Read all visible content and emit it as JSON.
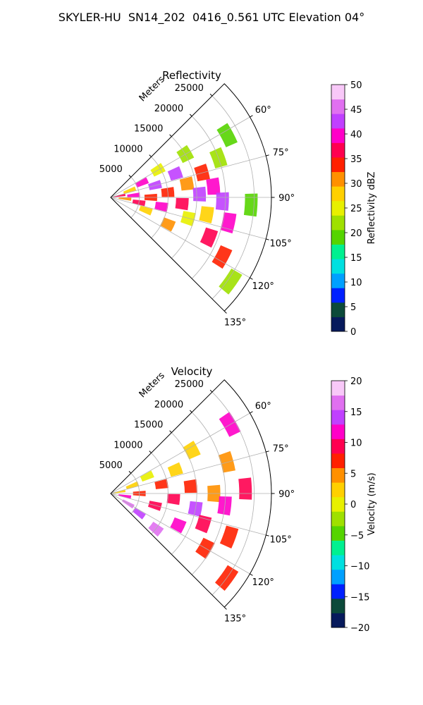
{
  "figure_title": "SKYLER-HU  SN14_202  0416_0.561 UTC Elevation 04°",
  "chart_data": [
    {
      "type": "heatmap",
      "subtype": "radar-ppi-sector",
      "title": "Reflectivity",
      "range_label": "Meters",
      "range_ticks": [
        5000,
        10000,
        15000,
        20000,
        25000
      ],
      "range_tick_labels": [
        "5000",
        "10000",
        "15000",
        "20000",
        "25000"
      ],
      "range_max": 28000,
      "azimuth_ticks": [
        60,
        75,
        90,
        105,
        120,
        135
      ],
      "azimuth_tick_labels": [
        "60°",
        "75°",
        "90°",
        "105°",
        "120°",
        "135°"
      ],
      "azimuth_range": [
        45,
        135
      ],
      "colorbar": {
        "label": "Reflectivity dBZ",
        "min": 0,
        "max": 50,
        "ticks": [
          0,
          5,
          10,
          15,
          20,
          25,
          30,
          35,
          40,
          45,
          50
        ],
        "tick_labels": [
          "0",
          "5",
          "10",
          "15",
          "20",
          "25",
          "30",
          "35",
          "40",
          "45",
          "50"
        ]
      },
      "colors": [
        "#071a5c",
        "#0c4a3a",
        "#0020ff",
        "#00a0ff",
        "#00e0e0",
        "#00f090",
        "#55d400",
        "#9fe000",
        "#e8f000",
        "#ffd000",
        "#ff9000",
        "#ff2000",
        "#ff0050",
        "#ff00c8",
        "#c040ff",
        "#e070f0",
        "#f8c8f8"
      ],
      "cells": [
        {
          "range": 1500,
          "az": 80,
          "value": 36
        },
        {
          "range": 2500,
          "az": 95,
          "value": 30
        },
        {
          "range": 3500,
          "az": 70,
          "value": 28
        },
        {
          "range": 4000,
          "az": 85,
          "value": 41
        },
        {
          "range": 5000,
          "az": 100,
          "value": 38
        },
        {
          "range": 6000,
          "az": 65,
          "value": 39
        },
        {
          "range": 6500,
          "az": 110,
          "value": 27
        },
        {
          "range": 7000,
          "az": 90,
          "value": 33
        },
        {
          "range": 8000,
          "az": 75,
          "value": 42
        },
        {
          "range": 9000,
          "az": 100,
          "value": 40
        },
        {
          "range": 9500,
          "az": 60,
          "value": 24
        },
        {
          "range": 10000,
          "az": 85,
          "value": 35
        },
        {
          "range": 11000,
          "az": 115,
          "value": 30
        },
        {
          "range": 12000,
          "az": 70,
          "value": 43
        },
        {
          "range": 12500,
          "az": 95,
          "value": 37
        },
        {
          "range": 13500,
          "az": 80,
          "value": 32
        },
        {
          "range": 14000,
          "az": 105,
          "value": 26
        },
        {
          "range": 15000,
          "az": 60,
          "value": 21
        },
        {
          "range": 15500,
          "az": 88,
          "value": 44
        },
        {
          "range": 16500,
          "az": 75,
          "value": 34
        },
        {
          "range": 17000,
          "az": 100,
          "value": 29
        },
        {
          "range": 18000,
          "az": 84,
          "value": 39
        },
        {
          "range": 18500,
          "az": 112,
          "value": 36
        },
        {
          "range": 19500,
          "az": 92,
          "value": 42
        },
        {
          "range": 20000,
          "az": 70,
          "value": 22
        },
        {
          "range": 21000,
          "az": 102,
          "value": 41
        },
        {
          "range": 22000,
          "az": 118,
          "value": 35
        },
        {
          "range": 23000,
          "az": 62,
          "value": 19
        },
        {
          "range": 24500,
          "az": 93,
          "value": 20
        },
        {
          "range": 25500,
          "az": 125,
          "value": 21
        }
      ]
    },
    {
      "type": "heatmap",
      "subtype": "radar-ppi-sector",
      "title": "Velocity",
      "range_label": "Meters",
      "range_ticks": [
        5000,
        10000,
        15000,
        20000,
        25000
      ],
      "range_tick_labels": [
        "5000",
        "10000",
        "15000",
        "20000",
        "25000"
      ],
      "range_max": 28000,
      "azimuth_ticks": [
        60,
        75,
        90,
        105,
        120,
        135
      ],
      "azimuth_tick_labels": [
        "60°",
        "75°",
        "90°",
        "105°",
        "120°",
        "135°"
      ],
      "azimuth_range": [
        45,
        135
      ],
      "colorbar": {
        "label": "Velocity (m/s)",
        "min": -20,
        "max": 20,
        "ticks": [
          -20,
          -15,
          -10,
          -5,
          0,
          5,
          10,
          15,
          20
        ],
        "tick_labels": [
          "−20",
          "−15",
          "−10",
          "−5",
          "0",
          "5",
          "10",
          "15",
          "20"
        ]
      },
      "colors": [
        "#071a5c",
        "#0c4a3a",
        "#0020ff",
        "#00a0ff",
        "#00e0e0",
        "#00f090",
        "#55d400",
        "#9fe000",
        "#e8f000",
        "#ffd000",
        "#ff9000",
        "#ff2000",
        "#ff0050",
        "#ff00c8",
        "#c040ff",
        "#e070f0",
        "#f8c8f8"
      ],
      "cells": [
        {
          "range": 1500,
          "az": 80,
          "value": 3
        },
        {
          "range": 2500,
          "az": 100,
          "value": 12
        },
        {
          "range": 3500,
          "az": 120,
          "value": 16
        },
        {
          "range": 4000,
          "az": 70,
          "value": 2
        },
        {
          "range": 5000,
          "az": 90,
          "value": 8
        },
        {
          "range": 6000,
          "az": 125,
          "value": 15
        },
        {
          "range": 7000,
          "az": 65,
          "value": 1
        },
        {
          "range": 8000,
          "az": 105,
          "value": 10
        },
        {
          "range": 9000,
          "az": 80,
          "value": 6
        },
        {
          "range": 10000,
          "az": 128,
          "value": 17
        },
        {
          "range": 11000,
          "az": 95,
          "value": 9
        },
        {
          "range": 12000,
          "az": 70,
          "value": 3
        },
        {
          "range": 13000,
          "az": 115,
          "value": 11
        },
        {
          "range": 14000,
          "az": 85,
          "value": 7
        },
        {
          "range": 15000,
          "az": 100,
          "value": 14
        },
        {
          "range": 16000,
          "az": 62,
          "value": 2
        },
        {
          "range": 17000,
          "az": 108,
          "value": 10
        },
        {
          "range": 18000,
          "az": 90,
          "value": 5
        },
        {
          "range": 19000,
          "az": 120,
          "value": 7
        },
        {
          "range": 20000,
          "az": 96,
          "value": 11
        },
        {
          "range": 21000,
          "az": 75,
          "value": 4
        },
        {
          "range": 22000,
          "az": 110,
          "value": 8
        },
        {
          "range": 23500,
          "az": 88,
          "value": 9
        },
        {
          "range": 24000,
          "az": 60,
          "value": 11
        },
        {
          "range": 25000,
          "az": 126,
          "value": 6
        }
      ]
    }
  ]
}
